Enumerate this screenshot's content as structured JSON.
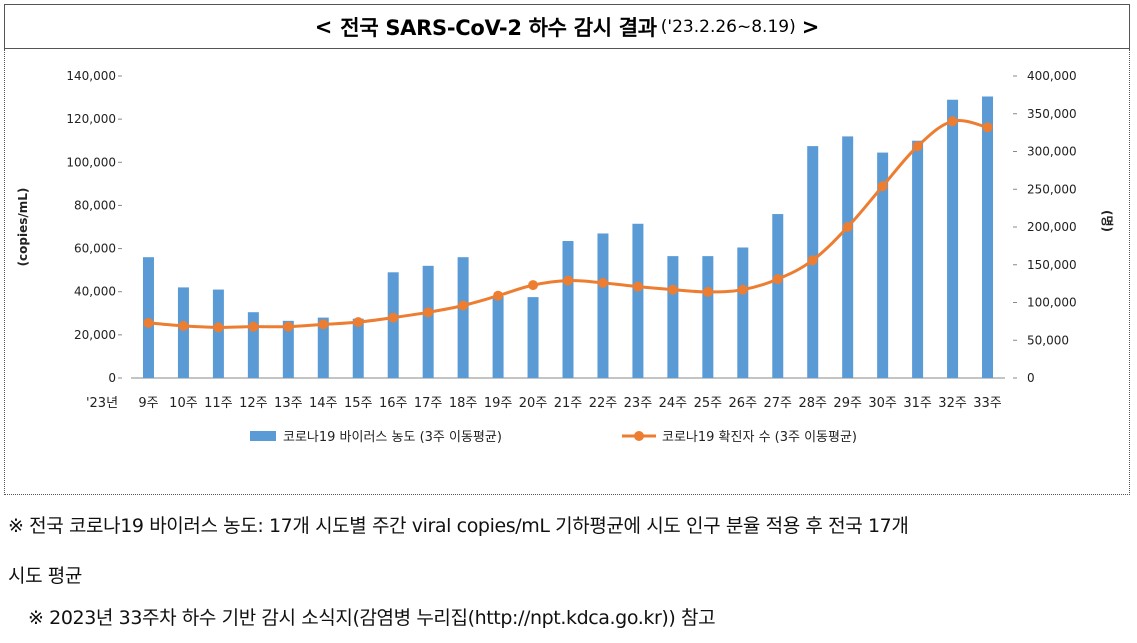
{
  "title": {
    "open": "<",
    "main": "전국 SARS-CoV-2 하수 감시 결과",
    "date": "('23.2.26~8.19)",
    "close": ">"
  },
  "notes": {
    "line1": "※ 전국 코로나19 바이러스 농도: 17개 시도별 주간 viral copies/mL 기하평균에 시도 인구 분율 적용 후 전국 17개",
    "line1b": "시도 평균",
    "line2": "※ 2023년 33주차 하수 기반 감시 소식지(감염병 누리집(http://npt.kdca.go.kr)) 참고"
  },
  "colors": {
    "bar": "#5B9BD5",
    "line": "#ED7D31",
    "axis": "#888888"
  },
  "chart_data": {
    "type": "bar+line",
    "title": "전국 SARS-CoV-2 하수 감시 결과 ('23.2.26~8.19)",
    "year_label": "'23년",
    "categories": [
      "9주",
      "10주",
      "11주",
      "12주",
      "13주",
      "14주",
      "15주",
      "16주",
      "17주",
      "18주",
      "19주",
      "20주",
      "21주",
      "22주",
      "23주",
      "24주",
      "25주",
      "26주",
      "27주",
      "28주",
      "29주",
      "30주",
      "31주",
      "32주",
      "33주"
    ],
    "series": [
      {
        "name": "코로나19 바이러스 농도 (3주 이동평균)",
        "type": "bar",
        "axis": "left",
        "values": [
          56000,
          42000,
          41000,
          30500,
          26500,
          28000,
          27500,
          49000,
          52000,
          56000,
          38000,
          37500,
          63500,
          67000,
          71500,
          56500,
          56500,
          60500,
          76000,
          107500,
          112000,
          104500,
          110000,
          129000,
          130500
        ]
      },
      {
        "name": "코로나19 확진자 수 (3주 이동평균)",
        "type": "line",
        "axis": "right",
        "values": [
          73000,
          69000,
          67000,
          68000,
          68000,
          71000,
          74000,
          80000,
          87000,
          96000,
          109000,
          123000,
          129000,
          126000,
          121000,
          117000,
          114000,
          117000,
          131000,
          156000,
          200000,
          254000,
          307000,
          340000,
          332000
        ]
      }
    ],
    "y_left": {
      "label": "(copies/mL)",
      "min": 0,
      "max": 140000,
      "ticks": [
        "0",
        "20,000",
        "40,000",
        "60,000",
        "80,000",
        "100,000",
        "120,000",
        "140,000"
      ]
    },
    "y_right": {
      "label": "(명)",
      "min": 0,
      "max": 400000,
      "ticks": [
        "0",
        "50,000",
        "100,000",
        "150,000",
        "200,000",
        "250,000",
        "300,000",
        "350,000",
        "400,000"
      ]
    },
    "legend": [
      "코로나19 바이러스 농도 (3주 이동평균)",
      "코로나19 확진자 수 (3주 이동평균)"
    ],
    "legend_position": "bottom"
  }
}
